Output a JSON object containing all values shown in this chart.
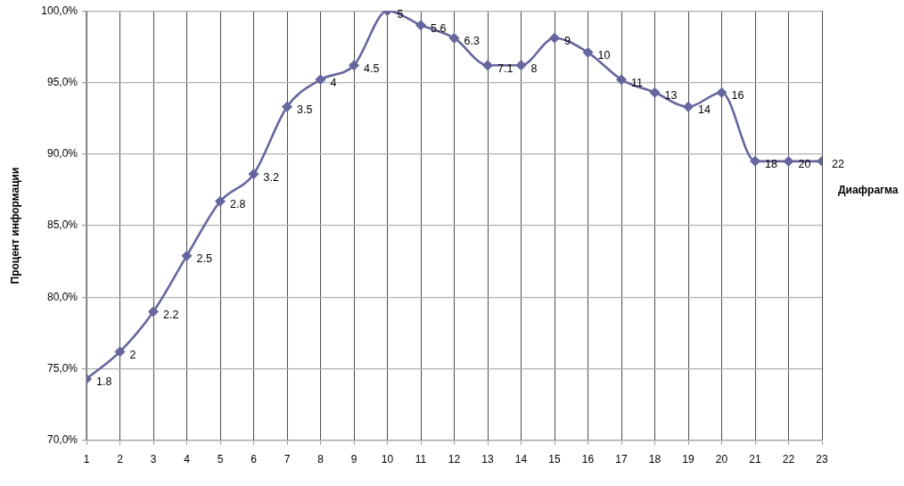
{
  "chart_data": {
    "type": "line",
    "xlabel": "Диафрагма",
    "ylabel": "Процент информации",
    "x": [
      1,
      2,
      3,
      4,
      5,
      6,
      7,
      8,
      9,
      10,
      11,
      12,
      13,
      14,
      15,
      16,
      17,
      18,
      19,
      20,
      21,
      22,
      23
    ],
    "series": [
      {
        "color": "#66669e",
        "values": [
          74.3,
          76.2,
          79.0,
          82.9,
          86.7,
          88.6,
          93.3,
          95.2,
          96.2,
          100,
          99.0,
          98.1,
          96.2,
          96.2,
          98.1,
          97.1,
          95.2,
          94.3,
          93.3,
          94.3,
          89.5,
          89.5,
          89.5
        ]
      }
    ],
    "xlim": [
      1,
      23
    ],
    "xticks": [
      1,
      2,
      3,
      4,
      5,
      6,
      7,
      8,
      9,
      10,
      11,
      12,
      13,
      14,
      15,
      16,
      17,
      18,
      19,
      20,
      21,
      22,
      23
    ],
    "ylim": [
      70,
      100
    ],
    "yticks": [
      {
        "value": 70,
        "label": "70,0%"
      },
      {
        "value": 75,
        "label": "75,0%"
      },
      {
        "value": 80,
        "label": "80,0%"
      },
      {
        "value": 85,
        "label": "85,0%"
      },
      {
        "value": 90,
        "label": "90,0%"
      },
      {
        "value": 95,
        "label": "95,0%"
      },
      {
        "value": 100,
        "label": "100,0%"
      }
    ],
    "grid": true,
    "marker": "diamond",
    "line_style": "solid",
    "annotations": [
      {
        "text": "1.8",
        "x": 1,
        "y": 74.3
      },
      {
        "text": "2",
        "x": 2,
        "y": 76.2
      },
      {
        "text": "2.2",
        "x": 3,
        "y": 79.0
      },
      {
        "text": "2.5",
        "x": 4,
        "y": 82.9
      },
      {
        "text": "2.8",
        "x": 5,
        "y": 86.7
      },
      {
        "text": "3.2",
        "x": 6,
        "y": 88.6
      },
      {
        "text": "3.5",
        "x": 7,
        "y": 93.3
      },
      {
        "text": "4",
        "x": 8,
        "y": 95.2
      },
      {
        "text": "4.5",
        "x": 9,
        "y": 96.2
      },
      {
        "text": "5",
        "x": 10,
        "y": 100
      },
      {
        "text": "5.6",
        "x": 11,
        "y": 99.0
      },
      {
        "text": "6.3",
        "x": 12,
        "y": 98.1
      },
      {
        "text": "7.1",
        "x": 13,
        "y": 96.2
      },
      {
        "text": "8",
        "x": 14,
        "y": 96.2
      },
      {
        "text": "9",
        "x": 15,
        "y": 98.1
      },
      {
        "text": "10",
        "x": 16,
        "y": 97.1
      },
      {
        "text": "11",
        "x": 17,
        "y": 95.2
      },
      {
        "text": "13",
        "x": 18,
        "y": 94.3
      },
      {
        "text": "14",
        "x": 19,
        "y": 93.3
      },
      {
        "text": "16",
        "x": 20,
        "y": 94.3
      },
      {
        "text": "18",
        "x": 21,
        "y": 89.5
      },
      {
        "text": "20",
        "x": 22,
        "y": 89.5
      },
      {
        "text": "22",
        "x": 23,
        "y": 89.5
      }
    ]
  }
}
